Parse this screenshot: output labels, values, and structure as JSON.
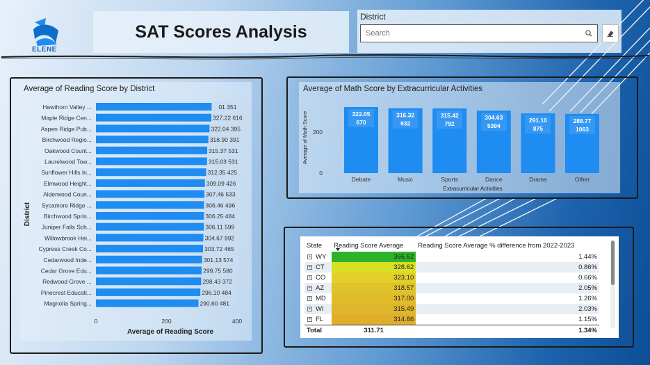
{
  "header": {
    "logo_text": "ELENE",
    "title": "SAT Scores Analysis"
  },
  "filter": {
    "label": "District",
    "search_placeholder": "Search"
  },
  "colors": {
    "bar": "#1e8cf0",
    "bar_label_bg": "#c9dcef"
  },
  "icons": {
    "search": "search-icon",
    "eraser": "eraser-icon",
    "expand": "expand-icon",
    "sort": "sort-descending-icon"
  },
  "chart_data": [
    {
      "type": "bar",
      "orientation": "horizontal",
      "title": "Average of Reading Score by District",
      "xlabel": "Average of Reading Score",
      "ylabel": "District",
      "xlim": [
        0,
        400
      ],
      "xticks": [
        "0",
        "200",
        "400"
      ],
      "categories": [
        "Hawthorn Valley ...",
        "Maple Ridge Cen...",
        "Aspen Ridge Pub...",
        "Birchwood Regio...",
        "Oakwood Count...",
        "Laurelwood Tow...",
        "Sunflower Hills In...",
        "Elmwood Height...",
        "Alderwood Coun...",
        "Sycamore Ridge ...",
        "Birchwood Sprin...",
        "Juniper Falls Sch...",
        "Willowbrook Hei...",
        "Cypress Creek Co...",
        "Cedarwood Inde...",
        "Cedar Grove Edu...",
        "Redwood Grove ...",
        "Pinecrest Educati...",
        "Magnolia Spring..."
      ],
      "values": [
        328.01,
        327.22,
        322.04,
        318.9,
        315.37,
        315.03,
        312.35,
        309.09,
        307.46,
        306.46,
        306.25,
        306.11,
        304.67,
        303.72,
        301.13,
        299.75,
        298.43,
        296.1,
        290.6
      ],
      "labels": [
        "328.01 351",
        "327.22 616",
        "322.04 395",
        "318.90 391",
        "315.37 531",
        "315.03 531",
        "312.35 425",
        "309.09 426",
        "307.46 533",
        "306.46 496",
        "306.25 484",
        "306.11 599",
        "304.67 992",
        "303.72 465",
        "301.13 574",
        "299.75 580",
        "298.43 372",
        "296.10 484",
        "290.60 481"
      ],
      "first_label_prefix_obscured": "328.",
      "grid": false,
      "legend": "none"
    },
    {
      "type": "bar",
      "orientation": "vertical",
      "title": "Average of Math Score by Extracurricular Activities",
      "xlabel": "Extracurricular Activities",
      "ylabel": "Average of Math Score",
      "ylim": [
        0,
        400
      ],
      "yticks": [
        "0",
        "200"
      ],
      "categories": [
        "Debate",
        "Music",
        "Sports",
        "Dance",
        "Drama",
        "Other"
      ],
      "values": [
        322.05,
        316.32,
        315.42,
        304.63,
        291.1,
        288.77
      ],
      "labels": [
        [
          "322.05",
          "670"
        ],
        [
          "316.32",
          "932"
        ],
        [
          "315.42",
          "792"
        ],
        [
          "304.63",
          "5394"
        ],
        [
          "291.10",
          "875"
        ],
        [
          "288.77",
          "1063"
        ]
      ],
      "grid": false,
      "legend": "none"
    },
    {
      "type": "table",
      "columns": [
        "State",
        "Reading Score Average",
        "Reading Score Average % difference from 2022-2023"
      ],
      "rows": [
        {
          "state": "WY",
          "avg": "366.62",
          "diff": "1.44%",
          "color": "#2db32a"
        },
        {
          "state": "CT",
          "avg": "328.62",
          "diff": "0.86%",
          "color": "#d9df24"
        },
        {
          "state": "CO",
          "avg": "323.10",
          "diff": "0.66%",
          "color": "#e2cf2a"
        },
        {
          "state": "AZ",
          "avg": "318.57",
          "diff": "2.05%",
          "color": "#e0c22a"
        },
        {
          "state": "MD",
          "avg": "317.00",
          "diff": "1.26%",
          "color": "#e0bc2b"
        },
        {
          "state": "WI",
          "avg": "315.49",
          "diff": "2.03%",
          "color": "#dfb52b"
        },
        {
          "state": "FL",
          "avg": "314.86",
          "diff": "1.15%",
          "color": "#dfae2b"
        }
      ],
      "total": {
        "label": "Total",
        "avg": "311.71",
        "diff": "1.34%"
      }
    }
  ]
}
